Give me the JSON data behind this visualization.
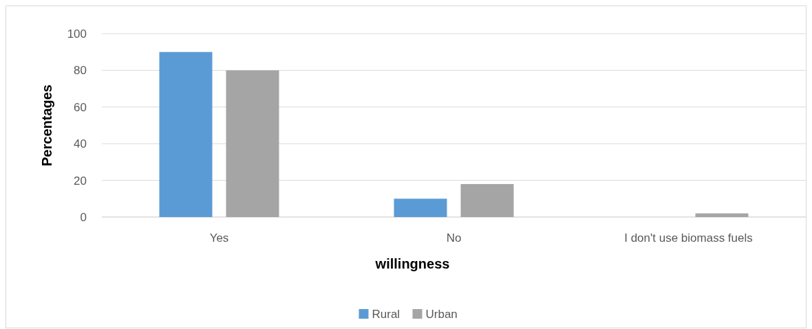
{
  "chart_data": {
    "type": "bar",
    "xlabel": "willingness",
    "ylabel": "Percentages",
    "categories": [
      "Yes",
      "No",
      "I don't use biomass fuels"
    ],
    "series": [
      {
        "name": "Rural",
        "color": "#5b9bd5",
        "values": [
          90,
          10,
          0
        ]
      },
      {
        "name": "Urban",
        "color": "#a5a5a5",
        "values": [
          80,
          18,
          2
        ]
      }
    ],
    "ylim": [
      0,
      100
    ],
    "yticks": [
      0,
      20,
      40,
      60,
      80,
      100
    ],
    "grid": "y",
    "legend": "bottom"
  }
}
